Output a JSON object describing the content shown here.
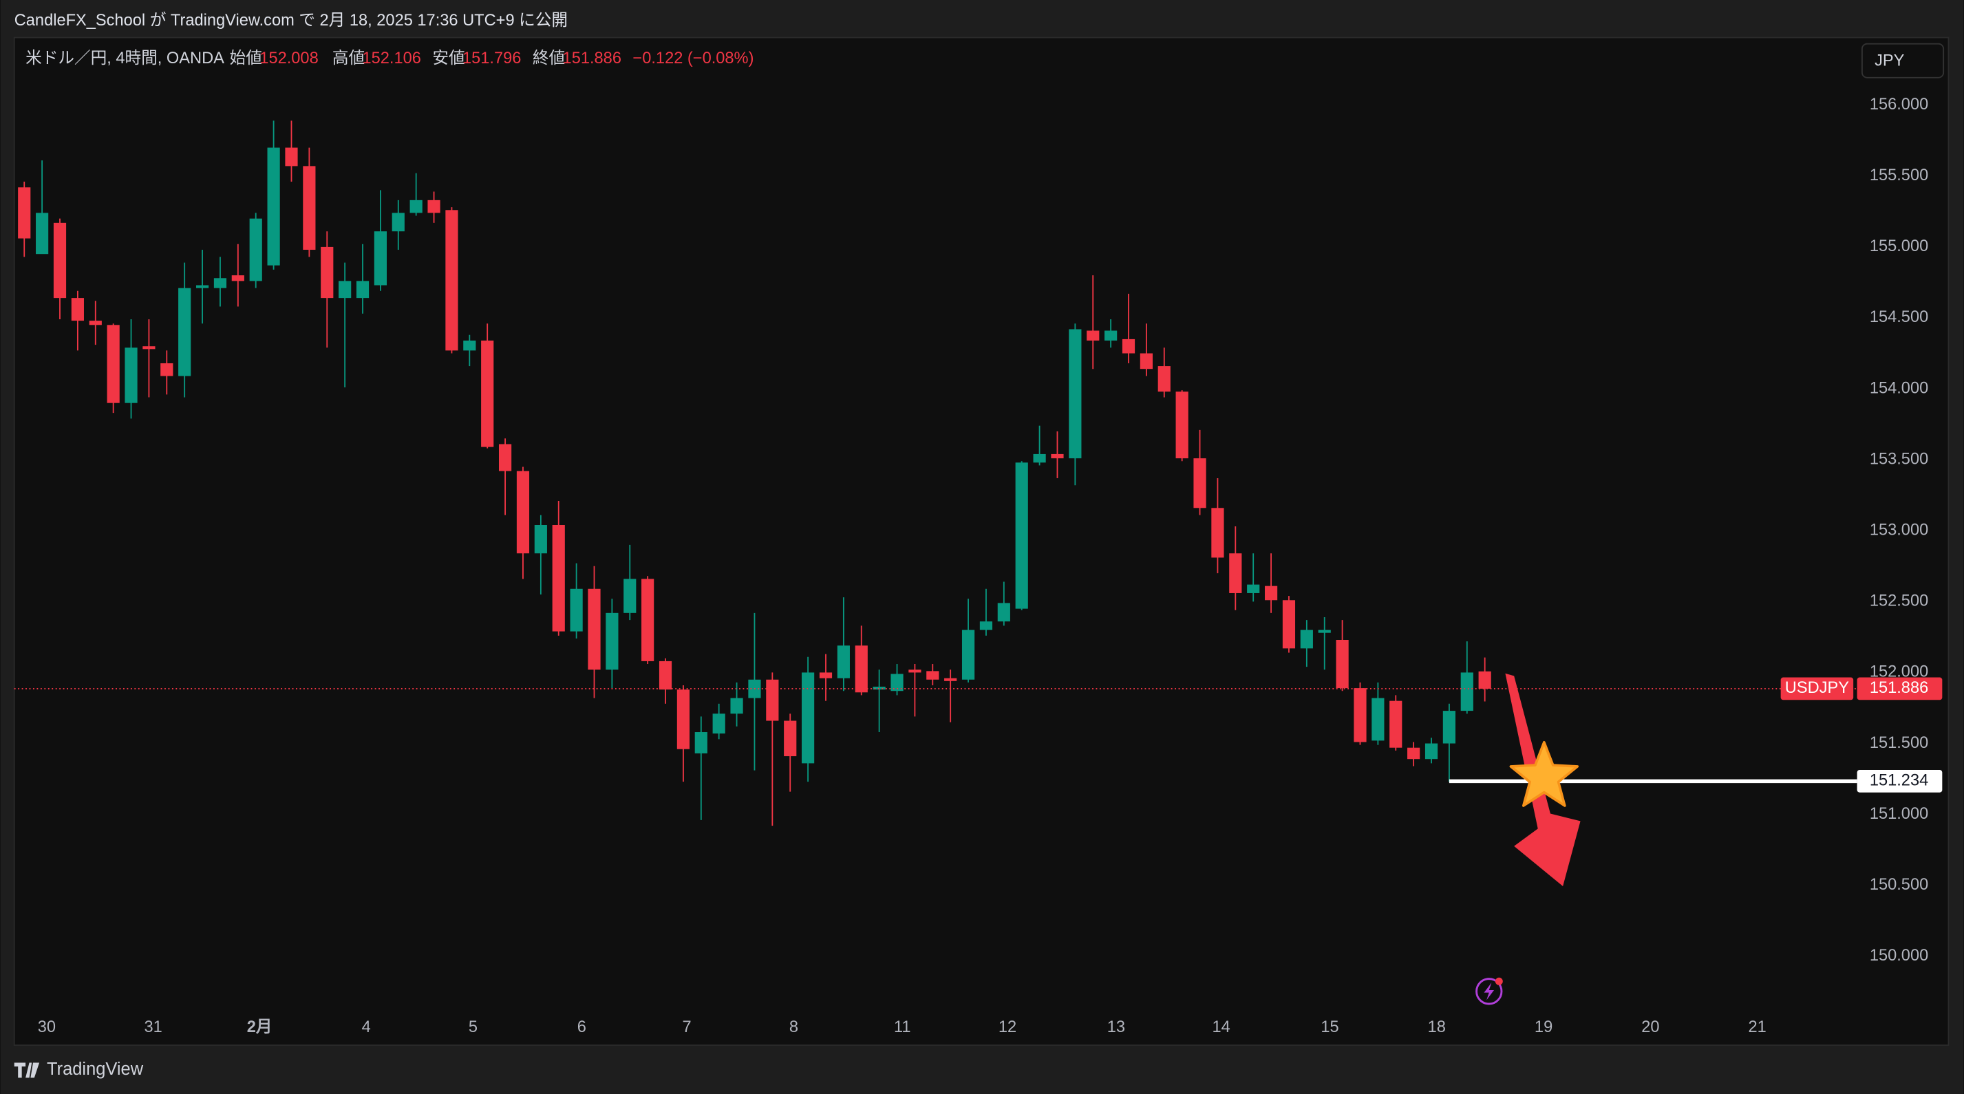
{
  "header": {
    "publish": "CandleFX_School が TradingView.com で 2月 18, 2025 17:36 UTC+9 に公開",
    "symbol": "米ドル／円, 4時間, OANDA",
    "open_label": "始値",
    "open": "152.008",
    "high_label": "高値",
    "high": "152.106",
    "low_label": "安値",
    "low": "151.796",
    "close_label": "終値",
    "close": "151.886",
    "change": "−0.122 (−0.08%)",
    "currency": "JPY"
  },
  "footer": {
    "brand": "TradingView"
  },
  "chart_data": {
    "type": "candlestick",
    "up_color": "#089981",
    "down_color": "#f23645",
    "grid": false,
    "open": [
      155.42,
      154.95,
      155.17,
      154.64,
      154.48,
      154.45,
      153.9,
      154.3,
      154.18,
      154.09,
      154.71,
      154.71,
      154.8,
      154.76,
      154.87,
      155.7,
      155.57,
      155.0,
      154.64,
      154.64,
      154.73,
      155.11,
      155.24,
      155.33,
      155.26,
      154.27,
      154.34,
      153.61,
      153.42,
      152.84,
      153.04,
      152.29,
      152.59,
      152.02,
      152.42,
      152.66,
      152.08,
      151.88,
      151.43,
      151.57,
      151.71,
      151.82,
      151.95,
      151.66,
      151.36,
      152.0,
      151.96,
      152.19,
      151.88,
      151.87,
      152.02,
      152.01,
      151.96,
      151.95,
      152.3,
      152.36,
      152.45,
      153.48,
      153.54,
      153.51,
      154.41,
      154.34,
      154.35,
      154.25,
      154.16,
      153.98,
      153.51,
      153.16,
      152.84,
      152.56,
      152.61,
      152.51,
      152.17,
      152.28,
      152.23,
      151.89,
      151.52,
      151.8,
      151.47,
      151.39,
      151.5,
      151.73,
      152.008
    ],
    "high": [
      155.46,
      155.61,
      155.2,
      154.69,
      154.62,
      154.46,
      154.49,
      154.49,
      154.27,
      154.89,
      154.98,
      154.93,
      155.02,
      155.24,
      155.89,
      155.89,
      155.7,
      155.11,
      154.89,
      155.02,
      155.4,
      155.33,
      155.52,
      155.39,
      155.28,
      154.38,
      154.46,
      153.65,
      153.45,
      153.11,
      153.21,
      152.77,
      152.75,
      152.52,
      152.9,
      152.68,
      152.1,
      151.91,
      151.69,
      151.78,
      151.93,
      152.42,
      152.0,
      151.71,
      152.11,
      152.13,
      152.53,
      152.33,
      152.02,
      152.06,
      152.06,
      152.06,
      152.02,
      152.52,
      152.59,
      152.64,
      153.49,
      153.74,
      153.7,
      154.46,
      154.8,
      154.49,
      154.67,
      154.46,
      154.29,
      153.99,
      153.71,
      153.37,
      153.03,
      152.84,
      152.84,
      152.54,
      152.37,
      152.39,
      152.37,
      151.93,
      151.93,
      151.84,
      151.51,
      151.54,
      151.78,
      152.22,
      152.106
    ],
    "low": [
      154.93,
      154.98,
      154.49,
      154.27,
      154.31,
      153.83,
      153.79,
      153.94,
      153.96,
      153.94,
      154.46,
      154.58,
      154.58,
      154.71,
      154.84,
      155.46,
      154.93,
      154.29,
      154.01,
      154.53,
      154.69,
      154.98,
      155.22,
      155.17,
      154.25,
      154.16,
      153.58,
      153.11,
      152.66,
      152.55,
      152.26,
      152.24,
      151.82,
      151.89,
      152.37,
      152.06,
      151.78,
      151.23,
      150.96,
      151.53,
      151.62,
      151.31,
      150.92,
      151.16,
      151.23,
      151.8,
      151.87,
      151.84,
      151.58,
      151.84,
      151.69,
      151.91,
      151.65,
      151.93,
      152.26,
      152.33,
      152.44,
      153.46,
      153.37,
      153.32,
      154.14,
      154.29,
      154.18,
      154.09,
      153.94,
      153.49,
      153.11,
      152.7,
      152.44,
      152.5,
      152.42,
      152.14,
      152.04,
      152.02,
      151.87,
      151.49,
      151.49,
      151.45,
      151.34,
      151.36,
      151.23,
      151.71,
      151.796
    ],
    "close": [
      155.06,
      155.24,
      154.64,
      154.48,
      154.45,
      153.9,
      154.29,
      154.28,
      154.09,
      154.71,
      154.73,
      154.78,
      154.76,
      155.2,
      155.7,
      155.57,
      154.98,
      154.64,
      154.76,
      154.76,
      155.11,
      155.24,
      155.33,
      155.24,
      154.27,
      154.34,
      153.59,
      153.42,
      152.84,
      153.04,
      152.29,
      152.59,
      152.02,
      152.42,
      152.66,
      152.08,
      151.88,
      151.46,
      151.58,
      151.71,
      151.82,
      151.95,
      151.66,
      151.41,
      152.0,
      151.96,
      152.19,
      151.86,
      151.9,
      151.99,
      152.0,
      151.95,
      151.94,
      152.3,
      152.36,
      152.49,
      153.48,
      153.54,
      153.51,
      154.42,
      154.34,
      154.41,
      154.25,
      154.14,
      153.98,
      153.51,
      153.16,
      152.81,
      152.56,
      152.62,
      152.51,
      152.17,
      152.3,
      152.3,
      151.89,
      151.51,
      151.82,
      151.47,
      151.39,
      151.5,
      151.73,
      152.0,
      151.886
    ],
    "xlim": [
      -0.56,
      102.9
    ],
    "ylim": [
      149.373,
      156.476
    ],
    "yticks": [
      {
        "value": 156,
        "label": "156.000"
      },
      {
        "value": 155.5,
        "label": "155.500"
      },
      {
        "value": 155,
        "label": "155.000"
      },
      {
        "value": 154.5,
        "label": "154.500"
      },
      {
        "value": 154,
        "label": "154.000"
      },
      {
        "value": 153.5,
        "label": "153.500"
      },
      {
        "value": 153,
        "label": "153.000"
      },
      {
        "value": 152.5,
        "label": "152.500"
      },
      {
        "value": 152,
        "label": "152.000"
      },
      {
        "value": 151.5,
        "label": "151.500"
      },
      {
        "value": 151,
        "label": "151.000"
      },
      {
        "value": 150.5,
        "label": "150.500"
      },
      {
        "value": 150,
        "label": "150.000"
      }
    ],
    "xticks": [
      {
        "value": 1.26,
        "label": "30"
      },
      {
        "value": 7.24,
        "label": "31"
      },
      {
        "value": 13.21,
        "label": "2月"
      },
      {
        "value": 19.2,
        "label": "4"
      },
      {
        "value": 25.2,
        "label": "5"
      },
      {
        "value": 31.3,
        "label": "6"
      },
      {
        "value": 37.2,
        "label": "7"
      },
      {
        "value": 43.2,
        "label": "8"
      },
      {
        "value": 49.3,
        "label": "11"
      },
      {
        "value": 55.2,
        "label": "12"
      },
      {
        "value": 61.3,
        "label": "13"
      },
      {
        "value": 67.2,
        "label": "14"
      },
      {
        "value": 73.3,
        "label": "15"
      },
      {
        "value": 79.3,
        "label": "18"
      },
      {
        "value": 85.3,
        "label": "19"
      },
      {
        "value": 91.3,
        "label": "20"
      },
      {
        "value": 97.3,
        "label": "21"
      }
    ],
    "symbol_tag": "USDJPY",
    "hline": {
      "value": 151.234,
      "label": "151.234",
      "start": 80
    }
  }
}
